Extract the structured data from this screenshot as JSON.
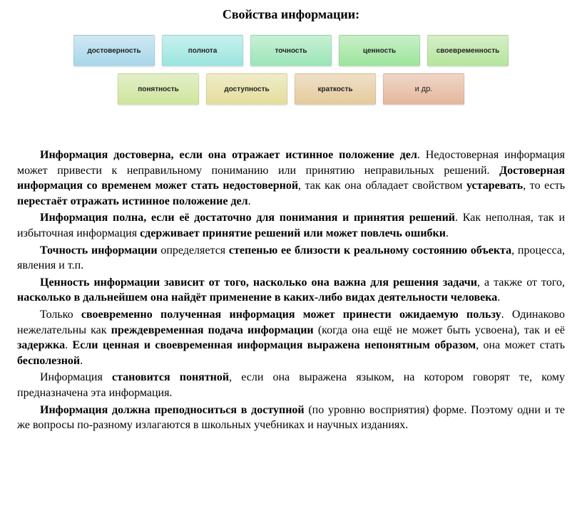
{
  "title": "Свойства информации:",
  "row1": [
    {
      "label": "достоверность",
      "bg": "linear-gradient(to bottom, #cfe8f3, #a7d7ea)"
    },
    {
      "label": "полнота",
      "bg": "linear-gradient(to bottom, #c8f0ee, #9be5df)"
    },
    {
      "label": "точность",
      "bg": "linear-gradient(to bottom, #c8f0d5, #9be5b8)"
    },
    {
      "label": "ценность",
      "bg": "linear-gradient(to bottom, #c8efc8, #9ce59c)"
    },
    {
      "label": "своевременность",
      "bg": "linear-gradient(to bottom, #d6efc8, #b5e59c)"
    }
  ],
  "row2": [
    {
      "label": "понятность",
      "bg": "linear-gradient(to bottom, #e3efc8, #cfe59c)"
    },
    {
      "label": "доступность",
      "bg": "linear-gradient(to bottom, #efecc8, #e5dd9c)"
    },
    {
      "label": "краткость",
      "bg": "linear-gradient(to bottom, #efe0c8, #e5ca9c)"
    },
    {
      "label": "и др.",
      "bg": "linear-gradient(to bottom, #efd6c8, #e5b79c)",
      "etc": true
    }
  ],
  "para": {
    "p1a": "Информация достоверна, если она отражает истинное положение дел",
    "p1b": ". Недостоверная информация может привести к неправильному пониманию или принятию неправильных решений. ",
    "p1c": "Достоверная информация со временем может стать недостоверной",
    "p1d": ", так как она обладает свойством ",
    "p1e": "устаревать",
    "p1f": ", то есть ",
    "p1g": "перестаёт отражать истинное положение дел",
    "p1h": ".",
    "p2a": "Информация полна, если её достаточно для понимания и принятия решений",
    "p2b": ". Как неполная, так и избыточная информация ",
    "p2c": "сдерживает принятие решений или может повлечь ошибки",
    "p2d": ".",
    "p3a": "Точность информации",
    "p3b": " определяется ",
    "p3c": "степенью ее близости к реальному состоянию объекта",
    "p3d": ", процесса, явления и т.п.",
    "p4a": "Ценность информации зависит от того, насколько она важна для решения задачи",
    "p4b": ", а также от того, ",
    "p4c": "насколько в дальнейшем она найдёт применение в каких-либо видах деятельности человека",
    "p4d": ".",
    "p5a": "Только ",
    "p5b": "своевременно полученная информация может принести ожидаемую пользу",
    "p5c": ". Одинаково нежелательны как ",
    "p5d": "преждевременная подача информации",
    "p5e": " (когда она ещё не может быть усвоена), так и её ",
    "p5f": "задержка",
    "p5g": ". ",
    "p5h": "Если ценная и своевременная информация выражена непонятным образом",
    "p5i": ", она может стать ",
    "p5j": "бесполезной",
    "p5k": ".",
    "p6a": "Информация ",
    "p6b": "становится понятной",
    "p6c": ", если она выражена языком, на котором говорят те, кому предназначена эта информация.",
    "p7a": "Информация должна преподноситься в доступной",
    "p7b": " (по уровню восприятия) форме. Поэтому одни и те же вопросы по-разному излагаются в школьных учебниках и научных изданиях."
  }
}
